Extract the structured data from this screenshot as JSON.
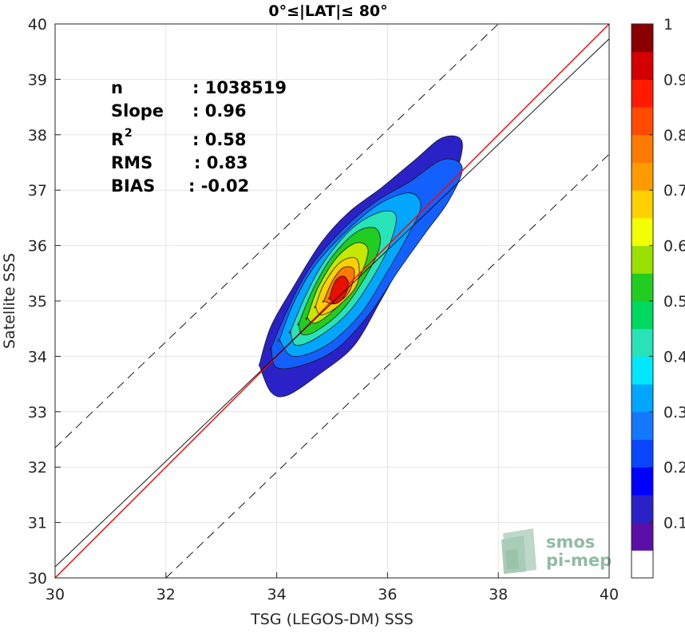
{
  "chart_data": {
    "type": "heatmap",
    "title": "0°≤|LAT|≤ 80°",
    "xlabel": "TSG (LEGOS-DM) SSS",
    "ylabel": "Satellite SSS",
    "xlim": [
      30,
      40
    ],
    "ylim": [
      30,
      40
    ],
    "xticks": [
      "30",
      "32",
      "34",
      "36",
      "38",
      "40"
    ],
    "yticks": [
      "30",
      "31",
      "32",
      "33",
      "34",
      "35",
      "36",
      "37",
      "38",
      "39",
      "40"
    ],
    "grid": true,
    "stats": [
      {
        "key": "n",
        "value": ": 1038519"
      },
      {
        "key": "Slope",
        "value": ": 0.96"
      },
      {
        "key": "R",
        "sup": "2",
        "value": ": 0.58"
      },
      {
        "key": "RMS",
        "value": ": 0.83"
      },
      {
        "key": "BIAS",
        "value": ": -0.02"
      }
    ],
    "lines": [
      {
        "name": "identity",
        "color": "#ff0000",
        "points": [
          [
            30,
            30
          ],
          [
            40,
            40
          ]
        ]
      },
      {
        "name": "fit",
        "color": "#000000",
        "points": [
          [
            30,
            30.2
          ],
          [
            40,
            39.73
          ]
        ]
      },
      {
        "name": "upper-bound",
        "color": "#000000",
        "dashed": true,
        "points": [
          [
            30,
            32.35
          ],
          [
            38.0,
            40
          ]
        ]
      },
      {
        "name": "lower-bound",
        "color": "#000000",
        "dashed": true,
        "points": [
          [
            32.0,
            30
          ],
          [
            40,
            37.65
          ]
        ]
      }
    ],
    "density": {
      "center": [
        35.25,
        35.2
      ],
      "ridge_slope": 1.15,
      "levels": [
        0.05,
        0.15,
        0.25,
        0.35,
        0.45,
        0.55,
        0.65,
        0.75,
        0.85
      ],
      "level_colors": [
        "#2a22c6",
        "#1460ff",
        "#00a6ff",
        "#29e3b8",
        "#22cd22",
        "#c6e800",
        "#ffd000",
        "#ff7a00",
        "#e41000"
      ],
      "contours": [
        [
          [
            33.7,
            33.9
          ],
          [
            33.9,
            34.55
          ],
          [
            34.3,
            35.25
          ],
          [
            34.8,
            36.05
          ],
          [
            35.3,
            36.6
          ],
          [
            35.9,
            37.05
          ],
          [
            36.5,
            37.55
          ],
          [
            37.0,
            37.95
          ],
          [
            37.35,
            37.85
          ],
          [
            37.15,
            37.05
          ],
          [
            36.8,
            36.45
          ],
          [
            36.3,
            35.75
          ],
          [
            35.9,
            35.05
          ],
          [
            35.4,
            34.2
          ],
          [
            34.8,
            33.7
          ],
          [
            34.2,
            33.3
          ],
          [
            33.9,
            33.35
          ],
          [
            33.7,
            33.8
          ]
        ],
        [
          [
            33.9,
            34.15
          ],
          [
            34.2,
            34.85
          ],
          [
            34.6,
            35.6
          ],
          [
            35.2,
            36.3
          ],
          [
            35.8,
            36.8
          ],
          [
            36.4,
            37.15
          ],
          [
            37.0,
            37.55
          ],
          [
            37.35,
            37.4
          ],
          [
            37.1,
            36.8
          ],
          [
            36.7,
            36.25
          ],
          [
            36.2,
            35.55
          ],
          [
            35.7,
            34.8
          ],
          [
            35.1,
            34.15
          ],
          [
            34.5,
            33.85
          ],
          [
            34.0,
            33.8
          ],
          [
            33.9,
            34.15
          ]
        ],
        [
          [
            34.05,
            34.3
          ],
          [
            34.3,
            34.95
          ],
          [
            34.7,
            35.65
          ],
          [
            35.3,
            36.3
          ],
          [
            35.85,
            36.75
          ],
          [
            36.4,
            36.95
          ],
          [
            36.6,
            36.7
          ],
          [
            36.35,
            36.15
          ],
          [
            35.95,
            35.45
          ],
          [
            35.5,
            34.75
          ],
          [
            34.9,
            34.2
          ],
          [
            34.3,
            34.0
          ],
          [
            34.05,
            34.3
          ]
        ],
        [
          [
            34.25,
            34.45
          ],
          [
            34.5,
            35.05
          ],
          [
            34.85,
            35.7
          ],
          [
            35.35,
            36.3
          ],
          [
            35.85,
            36.6
          ],
          [
            36.15,
            36.55
          ],
          [
            36.05,
            36.05
          ],
          [
            35.75,
            35.45
          ],
          [
            35.3,
            34.8
          ],
          [
            34.75,
            34.35
          ],
          [
            34.35,
            34.2
          ],
          [
            34.25,
            34.45
          ]
        ],
        [
          [
            34.4,
            34.6
          ],
          [
            34.65,
            35.2
          ],
          [
            35.0,
            35.8
          ],
          [
            35.45,
            36.25
          ],
          [
            35.8,
            36.3
          ],
          [
            35.85,
            35.95
          ],
          [
            35.55,
            35.35
          ],
          [
            35.15,
            34.8
          ],
          [
            34.7,
            34.45
          ],
          [
            34.45,
            34.4
          ],
          [
            34.4,
            34.6
          ]
        ],
        [
          [
            34.55,
            34.7
          ],
          [
            34.75,
            35.25
          ],
          [
            35.1,
            35.8
          ],
          [
            35.45,
            36.05
          ],
          [
            35.65,
            35.9
          ],
          [
            35.45,
            35.35
          ],
          [
            35.05,
            34.85
          ],
          [
            34.7,
            34.6
          ],
          [
            34.55,
            34.7
          ]
        ],
        [
          [
            34.7,
            34.9
          ],
          [
            34.85,
            35.3
          ],
          [
            35.15,
            35.7
          ],
          [
            35.45,
            35.75
          ],
          [
            35.45,
            35.3
          ],
          [
            35.1,
            34.9
          ],
          [
            34.8,
            34.75
          ],
          [
            34.7,
            34.9
          ]
        ],
        [
          [
            34.85,
            35.0
          ],
          [
            35.0,
            35.35
          ],
          [
            35.2,
            35.6
          ],
          [
            35.4,
            35.55
          ],
          [
            35.3,
            35.15
          ],
          [
            35.05,
            34.95
          ],
          [
            34.85,
            35.0
          ]
        ],
        [
          [
            34.95,
            35.05
          ],
          [
            35.05,
            35.35
          ],
          [
            35.2,
            35.45
          ],
          [
            35.3,
            35.3
          ],
          [
            35.2,
            35.05
          ],
          [
            35.05,
            34.95
          ],
          [
            34.95,
            35.05
          ]
        ]
      ]
    },
    "colorbar": {
      "ticks": [
        "0.1",
        "0.2",
        "0.3",
        "0.4",
        "0.5",
        "0.6",
        "0.7",
        "0.8",
        "0.9",
        "1"
      ],
      "colors": [
        "#ffffff",
        "#5a0fa8",
        "#2a22c6",
        "#0000ff",
        "#0a46ff",
        "#1478ff",
        "#00a6ff",
        "#00e8ff",
        "#29e3b8",
        "#00d860",
        "#22cd22",
        "#9ae000",
        "#f2ff00",
        "#ffd000",
        "#ff9a00",
        "#ff7a00",
        "#ff4a00",
        "#ff1a00",
        "#d40000",
        "#8a0000"
      ]
    },
    "watermark": {
      "line1": "smos",
      "line2": "pi-mep"
    }
  }
}
